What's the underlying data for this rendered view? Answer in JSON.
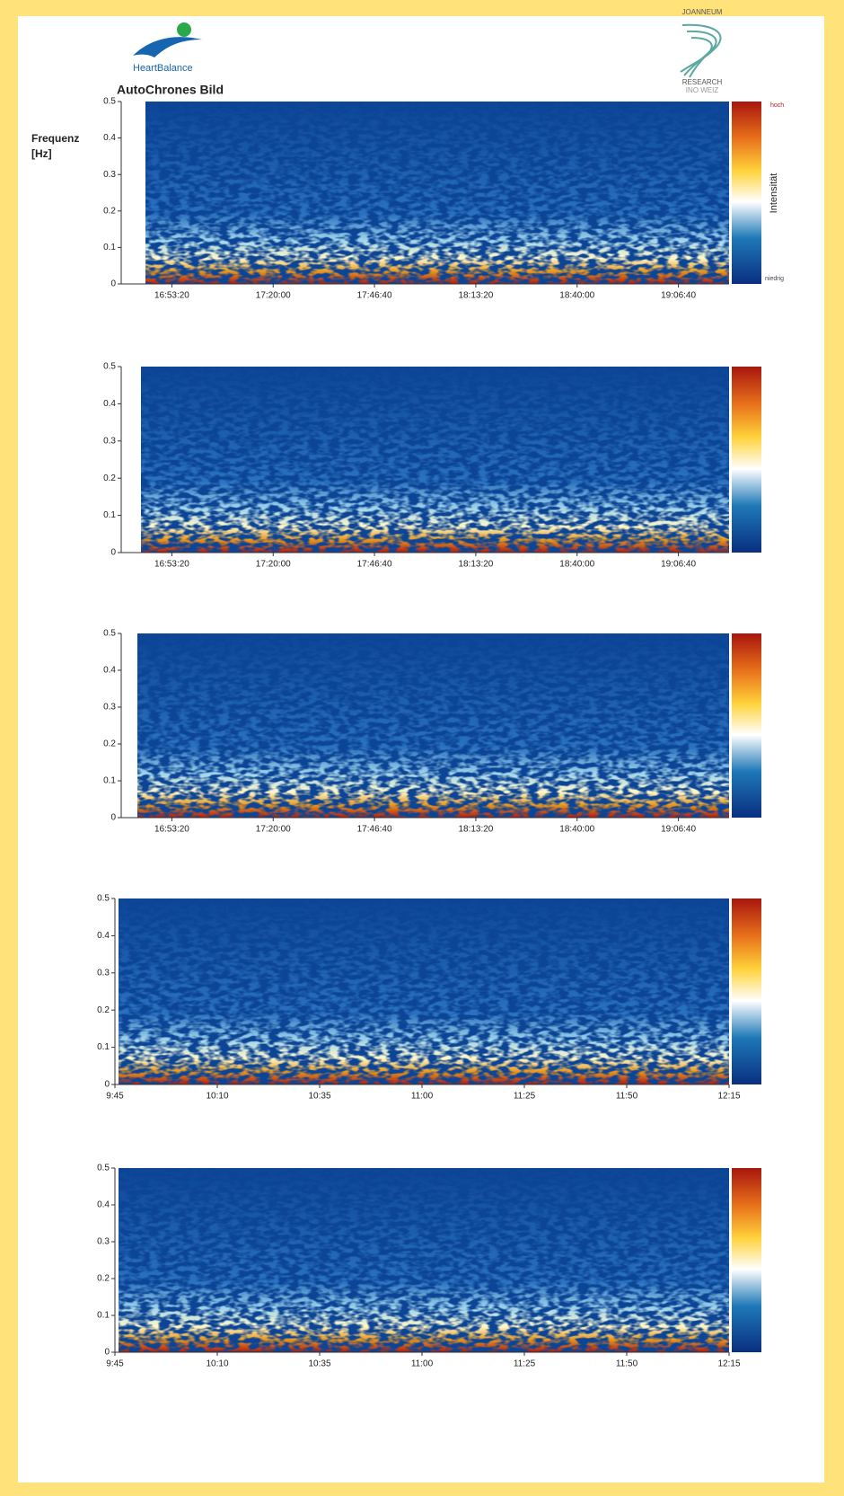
{
  "header": {
    "logo_text": "HeartBalance",
    "institute_top": "JOANNEUM",
    "institute_mid": "RESEARCH",
    "institute_bottom": "INO WEIZ",
    "title": "AutoChrones Bild",
    "y_label_1": "Frequenz",
    "y_label_2": "[Hz]",
    "colorbar_high": "hoch",
    "colorbar_label": "Intensität",
    "colorbar_low": "niedrig"
  },
  "chart_data": [
    {
      "type": "spectrogram",
      "ylim": [
        0,
        0.5
      ],
      "yticks": [
        0,
        0.1,
        0.2,
        0.3,
        0.4,
        0.5
      ],
      "xlim": [
        60000,
        69600
      ],
      "xticks": [
        {
          "value": 60800,
          "label": "16:53:20"
        },
        {
          "value": 62400,
          "label": "17:20:00"
        },
        {
          "value": 64000,
          "label": "17:46:40"
        },
        {
          "value": 65600,
          "label": "18:13:20"
        },
        {
          "value": 67200,
          "label": "18:40:00"
        },
        {
          "value": 68800,
          "label": "19:06:40"
        }
      ]
    },
    {
      "type": "spectrogram",
      "ylim": [
        0,
        0.5
      ],
      "yticks": [
        0,
        0.1,
        0.2,
        0.3,
        0.4,
        0.5
      ],
      "xlim": [
        60000,
        69600
      ],
      "xticks": [
        {
          "value": 60800,
          "label": "16:53:20"
        },
        {
          "value": 62400,
          "label": "17:20:00"
        },
        {
          "value": 64000,
          "label": "17:46:40"
        },
        {
          "value": 65600,
          "label": "18:13:20"
        },
        {
          "value": 67200,
          "label": "18:40:00"
        },
        {
          "value": 68800,
          "label": "19:06:40"
        }
      ]
    },
    {
      "type": "spectrogram",
      "ylim": [
        0,
        0.5
      ],
      "yticks": [
        0,
        0.1,
        0.2,
        0.3,
        0.4,
        0.5
      ],
      "xlim": [
        60000,
        69600
      ],
      "xticks": [
        {
          "value": 60800,
          "label": "16:53:20"
        },
        {
          "value": 62400,
          "label": "17:20:00"
        },
        {
          "value": 64000,
          "label": "17:46:40"
        },
        {
          "value": 65600,
          "label": "18:13:20"
        },
        {
          "value": 67200,
          "label": "18:40:00"
        },
        {
          "value": 68800,
          "label": "19:06:40"
        }
      ]
    },
    {
      "type": "spectrogram",
      "ylim": [
        0,
        0.5
      ],
      "yticks": [
        0,
        0.1,
        0.2,
        0.3,
        0.4,
        0.5
      ],
      "xlim": [
        585,
        735
      ],
      "xticks": [
        {
          "value": 585,
          "label": "9:45"
        },
        {
          "value": 610,
          "label": "10:10"
        },
        {
          "value": 635,
          "label": "10:35"
        },
        {
          "value": 660,
          "label": "11:00"
        },
        {
          "value": 685,
          "label": "11:25"
        },
        {
          "value": 710,
          "label": "11:50"
        },
        {
          "value": 735,
          "label": "12:15"
        }
      ]
    },
    {
      "type": "spectrogram",
      "ylim": [
        0,
        0.5
      ],
      "yticks": [
        0,
        0.1,
        0.2,
        0.3,
        0.4,
        0.5
      ],
      "xlim": [
        585,
        735
      ],
      "xticks": [
        {
          "value": 585,
          "label": "9:45"
        },
        {
          "value": 610,
          "label": "10:10"
        },
        {
          "value": 635,
          "label": "10:35"
        },
        {
          "value": 660,
          "label": "11:00"
        },
        {
          "value": 685,
          "label": "11:25"
        },
        {
          "value": 710,
          "label": "11:50"
        },
        {
          "value": 735,
          "label": "12:15"
        }
      ]
    }
  ]
}
